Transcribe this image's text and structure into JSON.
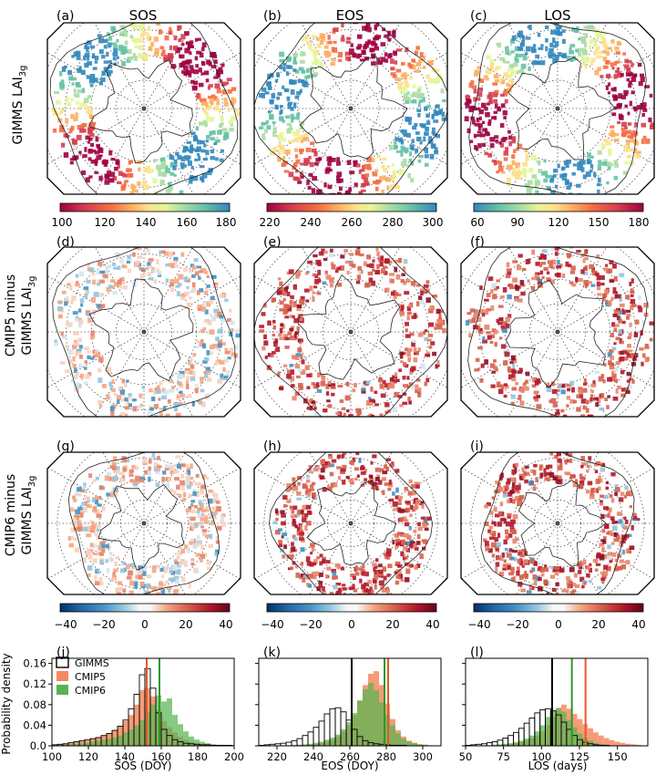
{
  "columns": [
    "SOS",
    "EOS",
    "LOS"
  ],
  "row_labels": [
    {
      "line1": "GIMMS LAI",
      "line2": ""
    },
    {
      "line1": "CMIP5 minus",
      "line2": "GIMMS LAI"
    },
    {
      "line1": "CMIP6 minus",
      "line2": "GIMMS LAI"
    }
  ],
  "row_label_subscript": "3g",
  "panel_labels": [
    "(a)",
    "(b)",
    "(c)",
    "(d)",
    "(e)",
    "(f)",
    "(g)",
    "(h)",
    "(i)",
    "(j)",
    "(k)",
    "(l)"
  ],
  "colorbars_top": [
    {
      "ticks": [
        "100",
        "120",
        "140",
        "160",
        "180"
      ],
      "palette": "spectral_r"
    },
    {
      "ticks": [
        "220",
        "240",
        "260",
        "280",
        "300"
      ],
      "palette": "spectral_r"
    },
    {
      "ticks": [
        "60",
        "90",
        "120",
        "150",
        "180"
      ],
      "palette": "spectral"
    }
  ],
  "colorbars_bottom": {
    "ticks": [
      "−40",
      "−20",
      "0",
      "20",
      "40"
    ],
    "palette": "rdbu"
  },
  "colors": {
    "gimms": "#000000",
    "cmip5": "#f4895f",
    "cmip6": "#57b452",
    "cmip5_line": "#e8572a",
    "cmip6_line": "#2a9a2a"
  },
  "chart_data": [
    {
      "type": "bar",
      "panel": "(j)",
      "xlabel": "SOS (DOY)",
      "ylabel": "Probability density",
      "xlim": [
        100,
        200
      ],
      "ylim": [
        0,
        0.17
      ],
      "xticks": [
        "100",
        "120",
        "140",
        "160",
        "180",
        "200"
      ],
      "yticks": [
        "0.0",
        "0.04",
        "0.08",
        "0.12",
        "0.16"
      ],
      "legend": {
        "entries": [
          "GIMMS",
          "CMIP5",
          "CMIP6"
        ],
        "placement": "top-left"
      },
      "bin_start": 100,
      "bin_width": 3,
      "series": [
        {
          "name": "GIMMS",
          "values": [
            0.002,
            0.003,
            0.004,
            0.006,
            0.008,
            0.01,
            0.012,
            0.014,
            0.016,
            0.02,
            0.024,
            0.03,
            0.038,
            0.05,
            0.072,
            0.1,
            0.138,
            0.15,
            0.112,
            0.064,
            0.032,
            0.02,
            0.012,
            0.008,
            0.005,
            0.004,
            0.003,
            0.002,
            0.002,
            0.001,
            0.001,
            0.001,
            0.001,
            0.0
          ]
        },
        {
          "name": "CMIP5",
          "values": [
            0.002,
            0.003,
            0.004,
            0.005,
            0.007,
            0.009,
            0.011,
            0.014,
            0.017,
            0.02,
            0.024,
            0.03,
            0.038,
            0.048,
            0.06,
            0.08,
            0.108,
            0.112,
            0.096,
            0.07,
            0.048,
            0.036,
            0.026,
            0.018,
            0.012,
            0.008,
            0.005,
            0.003,
            0.002,
            0.001,
            0.001,
            0.0,
            0.0,
            0.0
          ]
        },
        {
          "name": "CMIP6",
          "values": [
            0.001,
            0.002,
            0.003,
            0.003,
            0.004,
            0.005,
            0.006,
            0.008,
            0.01,
            0.012,
            0.014,
            0.016,
            0.02,
            0.026,
            0.032,
            0.04,
            0.05,
            0.066,
            0.08,
            0.098,
            0.086,
            0.092,
            0.06,
            0.042,
            0.028,
            0.018,
            0.012,
            0.008,
            0.005,
            0.003,
            0.002,
            0.001,
            0.001,
            0.0
          ]
        }
      ],
      "vlines": {
        "GIMMS": 152,
        "CMIP5": 152,
        "CMIP6": 159
      }
    },
    {
      "type": "bar",
      "panel": "(k)",
      "xlabel": "EOS (DOY)",
      "xlim": [
        210,
        310
      ],
      "ylim": [
        0,
        0.17
      ],
      "xticks": [
        "220",
        "240",
        "260",
        "280",
        "300"
      ],
      "bin_start": 210,
      "bin_width": 3,
      "series": [
        {
          "name": "GIMMS",
          "values": [
            0.001,
            0.002,
            0.003,
            0.004,
            0.005,
            0.007,
            0.01,
            0.014,
            0.02,
            0.027,
            0.036,
            0.048,
            0.062,
            0.072,
            0.074,
            0.066,
            0.05,
            0.032,
            0.018,
            0.01,
            0.006,
            0.004,
            0.003,
            0.002,
            0.001,
            0.001,
            0.001,
            0.0,
            0.0,
            0.0,
            0.0,
            0.0,
            0.0,
            0.0
          ]
        },
        {
          "name": "CMIP5",
          "values": [
            0.0,
            0.0,
            0.0,
            0.0,
            0.001,
            0.001,
            0.001,
            0.002,
            0.002,
            0.003,
            0.004,
            0.006,
            0.008,
            0.012,
            0.018,
            0.028,
            0.04,
            0.06,
            0.088,
            0.118,
            0.14,
            0.145,
            0.118,
            0.082,
            0.052,
            0.03,
            0.018,
            0.01,
            0.006,
            0.003,
            0.002,
            0.001,
            0.001,
            0.0
          ]
        },
        {
          "name": "CMIP6",
          "values": [
            0.0,
            0.0,
            0.0,
            0.001,
            0.001,
            0.001,
            0.002,
            0.002,
            0.003,
            0.004,
            0.006,
            0.008,
            0.012,
            0.016,
            0.022,
            0.032,
            0.046,
            0.064,
            0.088,
            0.11,
            0.122,
            0.108,
            0.084,
            0.06,
            0.04,
            0.024,
            0.014,
            0.008,
            0.005,
            0.003,
            0.002,
            0.001,
            0.0,
            0.0
          ]
        }
      ],
      "vlines": {
        "GIMMS": 261,
        "CMIP5": 281,
        "CMIP6": 279
      }
    },
    {
      "type": "bar",
      "panel": "(l)",
      "xlabel": "LOS (days)",
      "xlim": [
        50,
        170
      ],
      "ylim": [
        0,
        0.17
      ],
      "xticks": [
        "50",
        "75",
        "100",
        "125",
        "150"
      ],
      "bin_start": 50,
      "bin_width": 3.5,
      "series": [
        {
          "name": "GIMMS",
          "values": [
            0.001,
            0.002,
            0.003,
            0.004,
            0.006,
            0.008,
            0.011,
            0.015,
            0.02,
            0.026,
            0.034,
            0.044,
            0.054,
            0.064,
            0.07,
            0.072,
            0.068,
            0.06,
            0.046,
            0.032,
            0.02,
            0.012,
            0.007,
            0.004,
            0.002,
            0.001,
            0.001,
            0.0,
            0.0,
            0.0,
            0.0,
            0.0,
            0.0,
            0.0
          ]
        },
        {
          "name": "CMIP5",
          "values": [
            0.0,
            0.0,
            0.0,
            0.001,
            0.001,
            0.002,
            0.002,
            0.003,
            0.004,
            0.006,
            0.008,
            0.011,
            0.015,
            0.02,
            0.028,
            0.04,
            0.056,
            0.072,
            0.08,
            0.072,
            0.062,
            0.052,
            0.042,
            0.034,
            0.026,
            0.02,
            0.015,
            0.011,
            0.008,
            0.006,
            0.004,
            0.003,
            0.002,
            0.001
          ]
        },
        {
          "name": "CMIP6",
          "values": [
            0.0,
            0.0,
            0.0,
            0.001,
            0.001,
            0.002,
            0.003,
            0.004,
            0.005,
            0.007,
            0.01,
            0.014,
            0.02,
            0.028,
            0.04,
            0.056,
            0.068,
            0.074,
            0.066,
            0.05,
            0.036,
            0.024,
            0.016,
            0.01,
            0.006,
            0.004,
            0.002,
            0.001,
            0.001,
            0.0,
            0.0,
            0.0,
            0.0,
            0.0
          ]
        }
      ],
      "vlines": {
        "GIMMS": 107,
        "CMIP5": 129,
        "CMIP6": 120
      }
    }
  ]
}
